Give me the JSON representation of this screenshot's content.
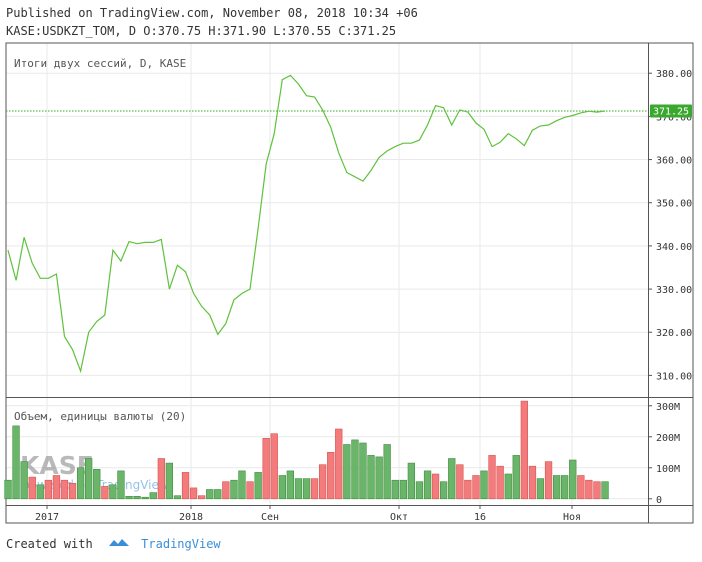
{
  "header": {
    "published": "Published on TradingView.com, November 08, 2018 10:34 +06",
    "ohlc": "KASE:USDKZT_TOM, D O:370.75 H:371.90 L:370.55 C:371.25"
  },
  "footer": {
    "created_with": "Created with",
    "brand": "TradingView"
  },
  "watermark": {
    "logo": "KASE",
    "powered": "powered by TradingView"
  },
  "colors": {
    "line": "#5fc23c",
    "up": "#6bb56b",
    "down": "#f37b7b",
    "grid": "#e9e9e9",
    "axis": "#555555",
    "last": "#3aa82f"
  },
  "chart_data": [
    {
      "type": "line",
      "title": "Итоги двух сессий, D, KASE",
      "ylim": [
        305,
        387
      ],
      "y_ticks": [
        310,
        320,
        330,
        340,
        350,
        360,
        370,
        380
      ],
      "y_tick_labels": [
        "310.00",
        "320.00",
        "330.00",
        "340.00",
        "350.00",
        "360.00",
        "370.00",
        "380.00"
      ],
      "last_value": 371.25,
      "last_label": "371.25",
      "x_tick_labels": [
        "2017",
        "2018",
        "Сен",
        "Окт",
        "16",
        "Ноя"
      ],
      "series": [
        {
          "values": [
            339,
            332,
            342,
            336,
            332.5,
            332.5,
            333.5,
            319,
            316,
            311,
            320,
            322.5,
            324,
            339,
            336.5,
            341,
            340.5,
            340.8,
            340.8,
            341.5,
            330,
            335.5,
            334,
            329,
            326,
            324,
            319.5,
            322,
            327.5,
            329,
            330,
            344,
            359,
            366,
            378.5,
            379.5,
            377.5,
            374.8,
            374.5,
            371.5,
            367.5,
            361.5,
            357,
            356,
            355,
            357.5,
            360.5,
            362,
            363,
            363.8,
            363.8,
            364.5,
            368,
            372.5,
            372,
            368,
            371.5,
            371,
            368.5,
            367,
            363,
            364,
            366,
            364.8,
            363.2,
            366.8,
            367.8,
            368,
            369,
            369.8,
            370.2,
            370.8,
            371.2,
            371,
            371.25
          ]
        }
      ]
    },
    {
      "type": "bar",
      "title": "Объем, единицы валюты (20)",
      "ylim": [
        -20,
        325
      ],
      "y_ticks": [
        0,
        100,
        200,
        300
      ],
      "y_tick_labels": [
        "0",
        "100M",
        "200M",
        "300M"
      ],
      "series": [
        {
          "values": [
            60,
            235,
            120,
            70,
            45,
            60,
            75,
            60,
            50,
            100,
            130,
            95,
            40,
            45,
            90,
            8,
            8,
            5,
            20,
            130,
            115,
            10,
            85,
            35,
            10,
            30,
            30,
            55,
            60,
            90,
            55,
            85,
            195,
            210,
            75,
            90,
            65,
            65,
            65,
            110,
            150,
            225,
            175,
            190,
            180,
            140,
            135,
            175,
            60,
            60,
            115,
            55,
            90,
            80,
            55,
            130,
            110,
            60,
            75,
            90,
            140,
            105,
            80,
            140,
            315,
            105,
            65,
            120,
            75,
            75,
            125,
            75,
            60,
            55,
            55
          ],
          "up": [
            true,
            true,
            true,
            false,
            true,
            false,
            false,
            false,
            false,
            true,
            true,
            true,
            false,
            true,
            true,
            true,
            true,
            true,
            true,
            false,
            true,
            true,
            false,
            false,
            false,
            true,
            true,
            false,
            true,
            true,
            false,
            true,
            false,
            false,
            true,
            true,
            true,
            true,
            false,
            false,
            false,
            false,
            true,
            true,
            true,
            true,
            true,
            true,
            true,
            true,
            true,
            true,
            true,
            false,
            true,
            true,
            false,
            false,
            false,
            true,
            false,
            false,
            true,
            true,
            false,
            false,
            true,
            false,
            true,
            true,
            true,
            false,
            false,
            false,
            true
          ]
        }
      ]
    }
  ]
}
